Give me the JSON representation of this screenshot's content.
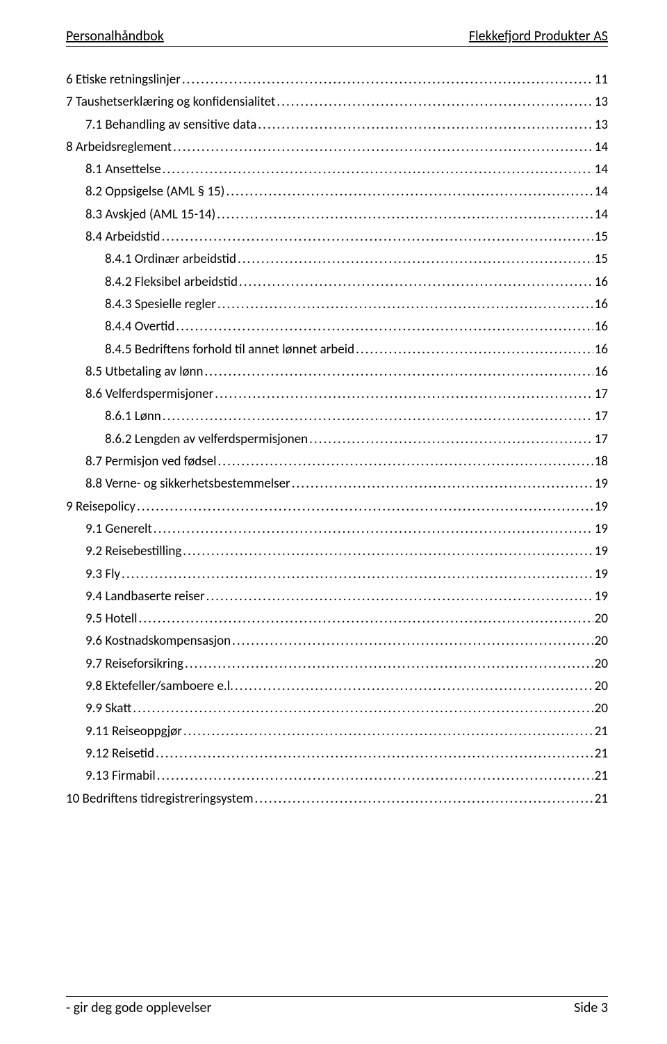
{
  "header": {
    "left": "Personalhåndbok",
    "right": "Flekkefjord Produkter AS"
  },
  "footer": {
    "left": "- gir deg gode opplevelser",
    "right": "Side 3"
  },
  "toc": [
    {
      "level": 1,
      "title": "6 Etiske retningslinjer",
      "page": "11"
    },
    {
      "level": 1,
      "title": "7 Taushetserklæring og konfidensialitet",
      "page": "13"
    },
    {
      "level": 2,
      "title": "7.1 Behandling av sensitive data",
      "page": "13"
    },
    {
      "level": 1,
      "title": "8 Arbeidsreglement",
      "page": "14"
    },
    {
      "level": 2,
      "title": "8.1 Ansettelse",
      "page": "14"
    },
    {
      "level": 2,
      "title": "8.2 Oppsigelse (AML § 15)",
      "page": "14"
    },
    {
      "level": 2,
      "title": "8.3 Avskjed (AML 15-14)",
      "page": "14"
    },
    {
      "level": 2,
      "title": "8.4 Arbeidstid",
      "page": "15"
    },
    {
      "level": 3,
      "title": "8.4.1 Ordinær arbeidstid",
      "page": "15"
    },
    {
      "level": 3,
      "title": "8.4.2 Fleksibel arbeidstid",
      "page": "16"
    },
    {
      "level": 3,
      "title": "8.4.3 Spesielle regler",
      "page": "16"
    },
    {
      "level": 3,
      "title": "8.4.4 Overtid",
      "page": "16"
    },
    {
      "level": 3,
      "title": "8.4.5 Bedriftens forhold til annet lønnet arbeid",
      "page": "16"
    },
    {
      "level": 2,
      "title": "8.5 Utbetaling av lønn",
      "page": "16"
    },
    {
      "level": 2,
      "title": "8.6 Velferdspermisjoner",
      "page": "17"
    },
    {
      "level": 3,
      "title": "8.6.1 Lønn",
      "page": "17"
    },
    {
      "level": 3,
      "title": "8.6.2 Lengden av velferdspermisjonen",
      "page": "17"
    },
    {
      "level": 2,
      "title": "8.7 Permisjon ved fødsel",
      "page": "18"
    },
    {
      "level": 2,
      "title": "8.8 Verne- og sikkerhetsbestemmelser",
      "page": "19"
    },
    {
      "level": 1,
      "title": "9 Reisepolicy",
      "page": "19"
    },
    {
      "level": 2,
      "title": "9.1 Generelt",
      "page": "19"
    },
    {
      "level": 2,
      "title": "9.2 Reisebestilling",
      "page": "19"
    },
    {
      "level": 2,
      "title": "9.3 Fly",
      "page": "19"
    },
    {
      "level": 2,
      "title": "9.4 Landbaserte reiser",
      "page": "19"
    },
    {
      "level": 2,
      "title": "9.5 Hotell",
      "page": "20"
    },
    {
      "level": 2,
      "title": "9.6 Kostnadskompensasjon",
      "page": "20"
    },
    {
      "level": 2,
      "title": "9.7 Reiseforsikring",
      "page": "20"
    },
    {
      "level": 2,
      "title": "9.8 Ektefeller/samboere e.l.",
      "page": "20"
    },
    {
      "level": 2,
      "title": "9.9 Skatt",
      "page": "20"
    },
    {
      "level": 2,
      "title": "9.11 Reiseoppgjør",
      "page": "21"
    },
    {
      "level": 2,
      "title": "9.12 Reisetid",
      "page": "21"
    },
    {
      "level": 2,
      "title": "9.13 Firmabil",
      "page": "21"
    },
    {
      "level": 1,
      "title": "10 Bedriftens tidregistreringsystem",
      "page": "21"
    }
  ]
}
